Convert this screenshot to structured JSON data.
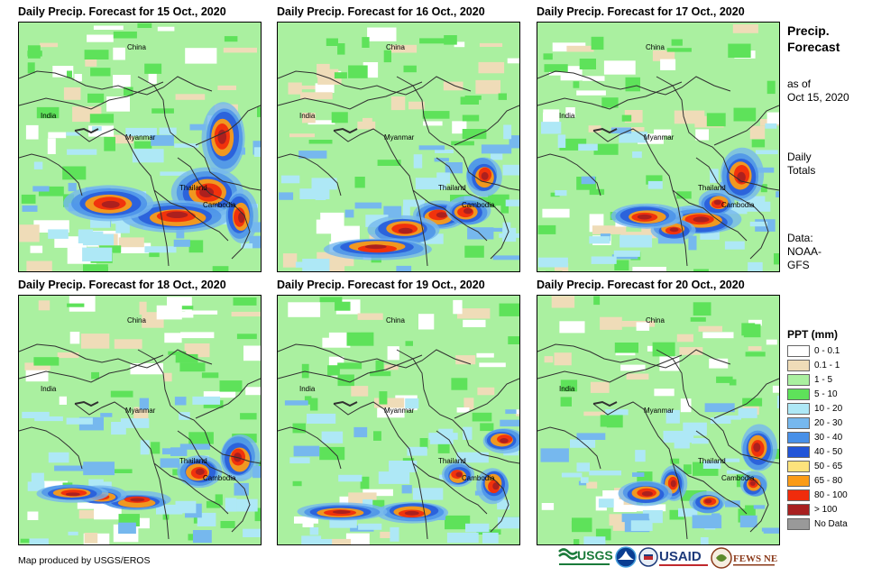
{
  "panels": [
    {
      "title": "Daily Precip. Forecast for 15 Oct., 2020"
    },
    {
      "title": "Daily Precip. Forecast for 16 Oct., 2020"
    },
    {
      "title": "Daily Precip. Forecast for 17 Oct., 2020"
    },
    {
      "title": "Daily Precip. Forecast for 18 Oct., 2020"
    },
    {
      "title": "Daily Precip. Forecast for 19 Oct., 2020"
    },
    {
      "title": "Daily Precip. Forecast for 20 Oct., 2020"
    }
  ],
  "map_labels": {
    "china": "China",
    "india": "India",
    "myanmar": "Myanmar",
    "thailand": "Thailand",
    "cambodia": "Cambodia"
  },
  "sidebar": {
    "title_line1": "Precip.",
    "title_line2": "Forecast",
    "asof_line1": "as of",
    "asof_line2": "Oct 15, 2020",
    "daily_line1": "Daily",
    "daily_line2": "Totals",
    "data_line1": "Data:",
    "data_line2": "NOAA-",
    "data_line3": "GFS"
  },
  "legend": {
    "title": "PPT (mm)",
    "items": [
      {
        "label": "0 - 0.1",
        "color": "#ffffff"
      },
      {
        "label": "0.1 - 1",
        "color": "#efdcb8"
      },
      {
        "label": "1 - 5",
        "color": "#aaf0a0"
      },
      {
        "label": "5 - 10",
        "color": "#5ee25a"
      },
      {
        "label": "10 - 20",
        "color": "#aee8f6"
      },
      {
        "label": "20 - 30",
        "color": "#76b8ee"
      },
      {
        "label": "30 - 40",
        "color": "#4890e8"
      },
      {
        "label": "40 - 50",
        "color": "#2255d8"
      },
      {
        "label": "50 - 65",
        "color": "#fde37c"
      },
      {
        "label": "65 - 80",
        "color": "#fb9b16"
      },
      {
        "label": "80 - 100",
        "color": "#f02c0c"
      },
      {
        "label": "> 100",
        "color": "#a82020"
      },
      {
        "label": "No Data",
        "color": "#999999"
      }
    ]
  },
  "credit": "Map produced by USGS/EROS",
  "logos": {
    "usgs": "USGS",
    "usaid": "USAID",
    "fewsnet": "FEWS NET"
  }
}
